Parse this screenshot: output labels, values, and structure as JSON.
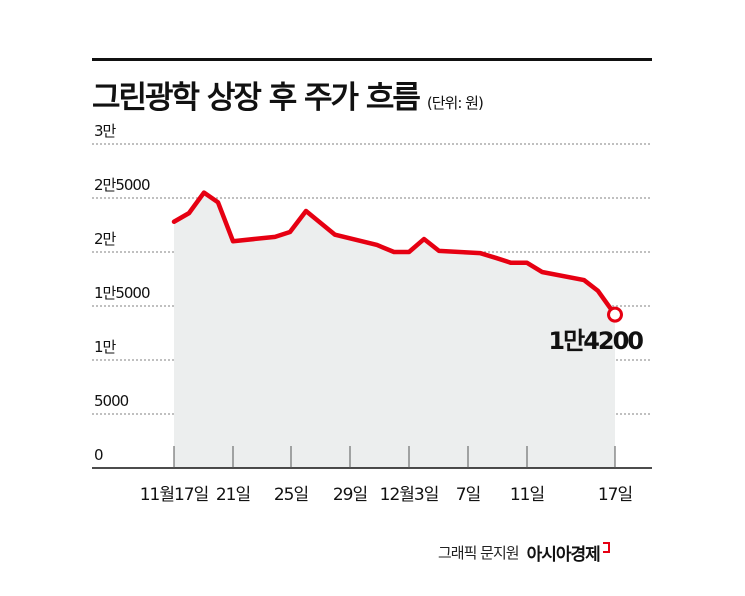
{
  "header": {
    "title": "그린광학 상장 후 주가 흐름",
    "unit": "(단위: 원)"
  },
  "footer": {
    "credit": "그래픽 문지원",
    "brand": "아시아경제"
  },
  "colors": {
    "line": "#e60012",
    "area": "#eceeee",
    "grid": "#9a9a9a",
    "text": "#111111"
  },
  "chart_data": {
    "type": "area",
    "title": "그린광학 상장 후 주가 흐름",
    "subtitle": "(단위: 원)",
    "xlabel": "",
    "ylabel": "원",
    "ylim": [
      0,
      30000
    ],
    "grid": true,
    "legend": "none",
    "yticks": [
      0,
      5000,
      10000,
      15000,
      20000,
      25000,
      30000
    ],
    "ytick_labels": [
      "0",
      "5000",
      "1만",
      "1만5000",
      "2만",
      "2만5000",
      "3만"
    ],
    "xtick_labels": [
      "11월17일",
      "21일",
      "25일",
      "29일",
      "12월3일",
      "7일",
      "11일",
      "17일"
    ],
    "series": [
      {
        "name": "주가",
        "x": [
          "11/17",
          "11/18",
          "11/19",
          "11/20",
          "11/21",
          "11/24",
          "11/25",
          "11/26",
          "11/28",
          "12/1",
          "12/2",
          "12/3",
          "12/4",
          "12/5",
          "12/8",
          "12/9",
          "12/10",
          "12/11",
          "12/12",
          "12/15",
          "12/16",
          "12/17"
        ],
        "values": [
          22800,
          23600,
          25500,
          24600,
          21000,
          21400,
          21850,
          23800,
          21600,
          20650,
          20000,
          20000,
          21200,
          20100,
          19900,
          19450,
          19000,
          19000,
          18150,
          17400,
          16400,
          14200
        ]
      }
    ],
    "annotations": [
      {
        "text": "1만4200",
        "x": "12/17",
        "value": 14200
      }
    ]
  }
}
